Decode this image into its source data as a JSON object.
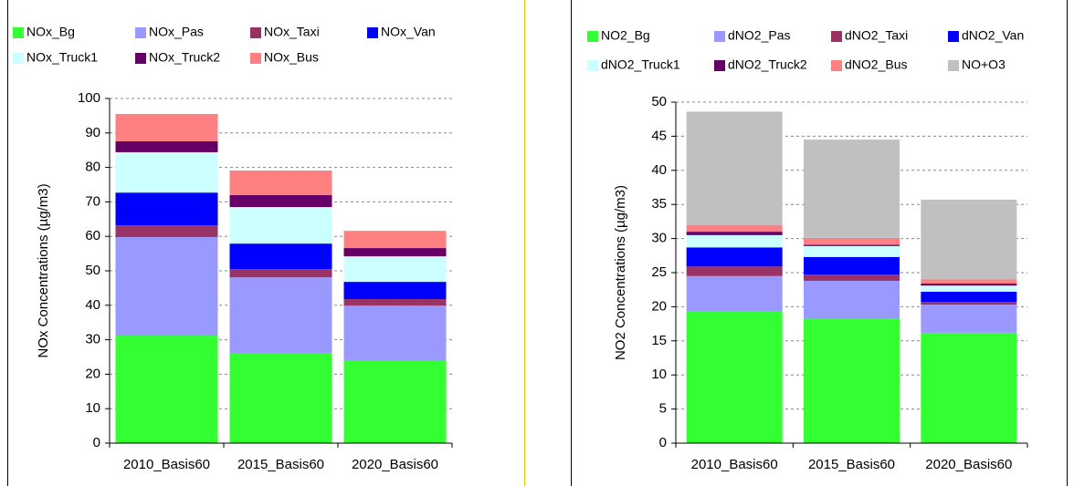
{
  "chart_data": [
    {
      "type": "stacked_bar",
      "y_label": "NOx Concentrations (µg/m3)",
      "categories": [
        "2010_Basis60",
        "2015_Basis60",
        "2020_Basis60"
      ],
      "ylim": [
        0,
        100
      ],
      "yticks": [
        0,
        10,
        20,
        30,
        40,
        50,
        60,
        70,
        80,
        90,
        100
      ],
      "grid": true,
      "series": [
        {
          "name": "NOx_Bg",
          "color": "#33ff33",
          "values": [
            31.2,
            26.2,
            24.1
          ]
        },
        {
          "name": "NOx_Pas",
          "color": "#9999ff",
          "values": [
            28.6,
            21.9,
            15.8
          ]
        },
        {
          "name": "NOx_Taxi",
          "color": "#993366",
          "values": [
            3.4,
            2.4,
            1.9
          ]
        },
        {
          "name": "NOx_Van",
          "color": "#0000ff",
          "values": [
            9.5,
            7.4,
            5.0
          ]
        },
        {
          "name": "NOx_Truck1",
          "color": "#ccffff",
          "values": [
            11.7,
            10.6,
            7.4
          ]
        },
        {
          "name": "NOx_Truck2",
          "color": "#660066",
          "values": [
            3.2,
            3.5,
            2.4
          ]
        },
        {
          "name": "NOx_Bus",
          "color": "#ff8080",
          "values": [
            7.9,
            7.1,
            5.0
          ]
        }
      ]
    },
    {
      "type": "stacked_bar",
      "y_label": "NO2 Concentrations (µg/m3)",
      "categories": [
        "2010_Basis60",
        "2015_Basis60",
        "2020_Basis60"
      ],
      "ylim": [
        0,
        50
      ],
      "yticks": [
        0,
        5,
        10,
        15,
        20,
        25,
        30,
        35,
        40,
        45,
        50
      ],
      "grid": true,
      "series": [
        {
          "name": "NO2_Bg",
          "color": "#33ff33",
          "values": [
            19.3,
            18.2,
            16.2
          ]
        },
        {
          "name": "dNO2_Pas",
          "color": "#9999ff",
          "values": [
            5.2,
            5.6,
            4.1
          ]
        },
        {
          "name": "dNO2_Taxi",
          "color": "#993366",
          "values": [
            1.4,
            0.9,
            0.4
          ]
        },
        {
          "name": "dNO2_Van",
          "color": "#0000ff",
          "values": [
            2.8,
            2.6,
            1.5
          ]
        },
        {
          "name": "dNO2_Truck1",
          "color": "#ccffff",
          "values": [
            1.8,
            1.6,
            0.9
          ]
        },
        {
          "name": "dNO2_Truck2",
          "color": "#660066",
          "values": [
            0.5,
            0.2,
            0.3
          ]
        },
        {
          "name": "dNO2_Bus",
          "color": "#ff8080",
          "values": [
            1.0,
            1.0,
            0.6
          ]
        },
        {
          "name": "NO+O3",
          "color": "#c0c0c0",
          "values": [
            16.6,
            14.4,
            11.7
          ]
        }
      ]
    }
  ]
}
